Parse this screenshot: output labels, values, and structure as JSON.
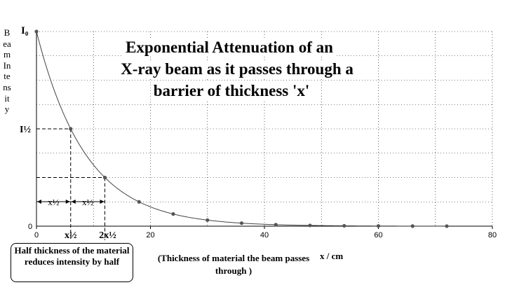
{
  "chart_data": {
    "type": "line",
    "title_lines": [
      "Exponential Attenuation of an",
      "X-ray beam as it passes through a",
      "barrier of thickness 'x'"
    ],
    "ylabel": "Beam Intensity",
    "xunit": "x / cm",
    "caption": "(Thickness of material the beam passes through )",
    "note": "Half thickness of the material reduces intensity by half",
    "x_ticks": [
      "0",
      "20",
      "40",
      "60",
      "80"
    ],
    "xlim": [
      0,
      80
    ],
    "ylim": [
      0,
      1
    ],
    "grid": true,
    "y_labels": {
      "top": "I₀",
      "half": "I½",
      "zero": "0"
    },
    "half_value_marks": {
      "first": "x½",
      "second": "2x½"
    },
    "interval_labels": [
      "x½",
      "x½"
    ],
    "half_value_thickness": 6,
    "series": [
      {
        "x": [
          0,
          6,
          12,
          18,
          24,
          30,
          36,
          42,
          48,
          54,
          60,
          66,
          72
        ],
        "values": [
          1.0,
          0.5,
          0.25,
          0.125,
          0.0625,
          0.03125,
          0.0156,
          0.0078,
          0.0039,
          0.002,
          0.001,
          0.0005,
          0.0002
        ]
      }
    ],
    "line_color": "#444444",
    "marker_color": "#555555",
    "grid_color": "#000000"
  }
}
